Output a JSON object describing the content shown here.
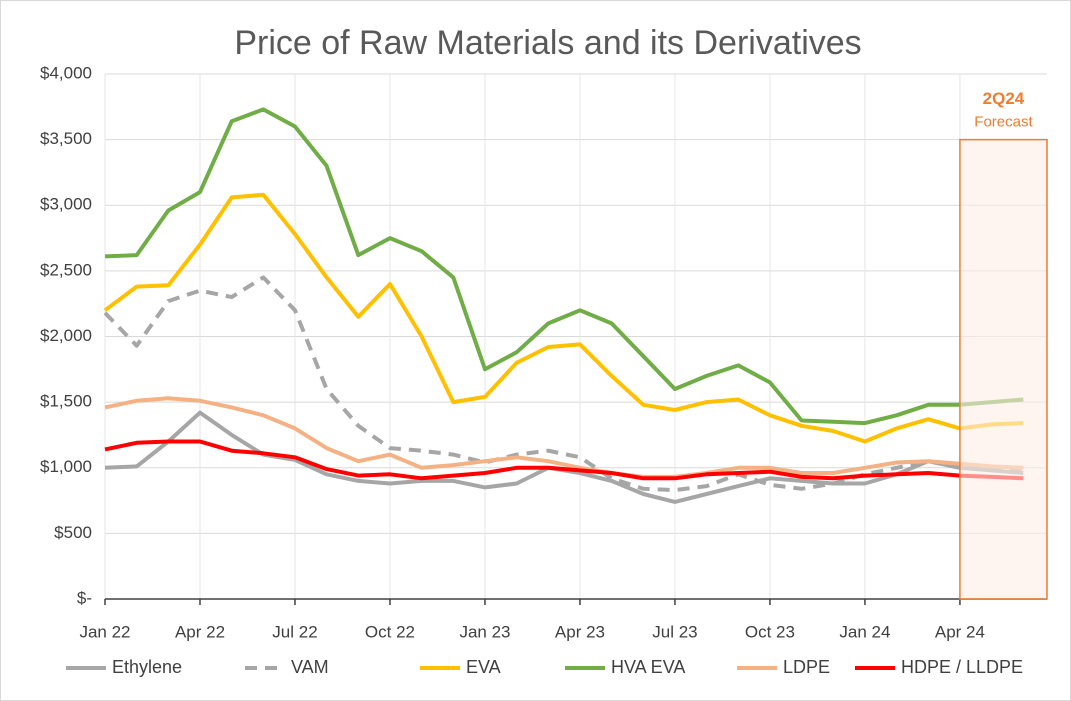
{
  "chart_data": {
    "type": "line",
    "title": "Price of Raw Materials and its Derivatives",
    "categories": [
      "Jan 22",
      null,
      null,
      "Apr 22",
      null,
      null,
      "Jul 22",
      null,
      null,
      "Oct 22",
      null,
      null,
      "Jan 23",
      null,
      null,
      "Apr 23",
      null,
      null,
      "Jul 23",
      null,
      null,
      "Oct 23",
      null,
      null,
      "Jan 24",
      null,
      null,
      "Apr 24",
      null,
      null
    ],
    "series": [
      {
        "name": "Ethylene",
        "color": "#a6a6a6",
        "dash": false,
        "values": [
          1000,
          1010,
          1200,
          1420,
          1250,
          1100,
          1060,
          950,
          900,
          880,
          900,
          900,
          850,
          880,
          1000,
          960,
          900,
          800,
          740,
          800,
          860,
          920,
          900,
          880,
          880,
          950,
          1050,
          1000,
          980,
          960
        ]
      },
      {
        "name": "VAM",
        "color": "#a6a6a6",
        "dash": true,
        "values": [
          2180,
          1930,
          2270,
          2350,
          2300,
          2450,
          2200,
          1600,
          1320,
          1150,
          1130,
          1100,
          1040,
          1100,
          1130,
          1080,
          920,
          840,
          830,
          860,
          950,
          870,
          840,
          880,
          950,
          1000,
          1050,
          1000,
          990,
          970
        ]
      },
      {
        "name": "EVA",
        "color": "#ffc000",
        "dash": false,
        "values": [
          2200,
          2380,
          2390,
          2700,
          3060,
          3080,
          2780,
          2450,
          2150,
          2400,
          2000,
          1500,
          1540,
          1800,
          1920,
          1940,
          1700,
          1480,
          1440,
          1500,
          1520,
          1400,
          1320,
          1280,
          1200,
          1300,
          1370,
          1300,
          1330,
          1340
        ]
      },
      {
        "name": "HVA EVA",
        "color": "#70ad47",
        "dash": false,
        "values": [
          2610,
          2620,
          2960,
          3100,
          3640,
          3730,
          3600,
          3300,
          2620,
          2750,
          2650,
          2450,
          1750,
          1880,
          2100,
          2200,
          2100,
          1850,
          1600,
          1700,
          1780,
          1650,
          1360,
          1350,
          1340,
          1400,
          1480,
          1480,
          1500,
          1520
        ]
      },
      {
        "name": "LDPE",
        "color": "#f4b183",
        "dash": false,
        "values": [
          1460,
          1510,
          1530,
          1510,
          1460,
          1400,
          1300,
          1150,
          1050,
          1100,
          1000,
          1020,
          1050,
          1080,
          1050,
          1000,
          960,
          930,
          930,
          960,
          1000,
          1000,
          960,
          960,
          1000,
          1040,
          1050,
          1030,
          1010,
          1000
        ]
      },
      {
        "name": "HDPE / LLDPE",
        "color": "#ff0000",
        "dash": false,
        "values": [
          1140,
          1190,
          1200,
          1200,
          1130,
          1110,
          1080,
          990,
          940,
          950,
          920,
          940,
          960,
          1000,
          1000,
          980,
          960,
          920,
          920,
          950,
          960,
          970,
          930,
          920,
          940,
          950,
          960,
          940,
          930,
          920
        ]
      }
    ],
    "ylim": [
      0,
      4000
    ],
    "yticks": [
      {
        "value": 0,
        "label": "$-"
      },
      {
        "value": 500,
        "label": "$500"
      },
      {
        "value": 1000,
        "label": "$1,000"
      },
      {
        "value": 1500,
        "label": "$1,500"
      },
      {
        "value": 2000,
        "label": "$2,000"
      },
      {
        "value": 2500,
        "label": "$2,500"
      },
      {
        "value": 3000,
        "label": "$3,000"
      },
      {
        "value": 3500,
        "label": "$3,500"
      },
      {
        "value": 4000,
        "label": "$4,000"
      }
    ],
    "grid": true,
    "legend": "bottom",
    "forecast": {
      "title": "2Q24",
      "text": "Forecast",
      "start": "Apr 24",
      "top": 3500,
      "color": "#ed7d31"
    }
  }
}
